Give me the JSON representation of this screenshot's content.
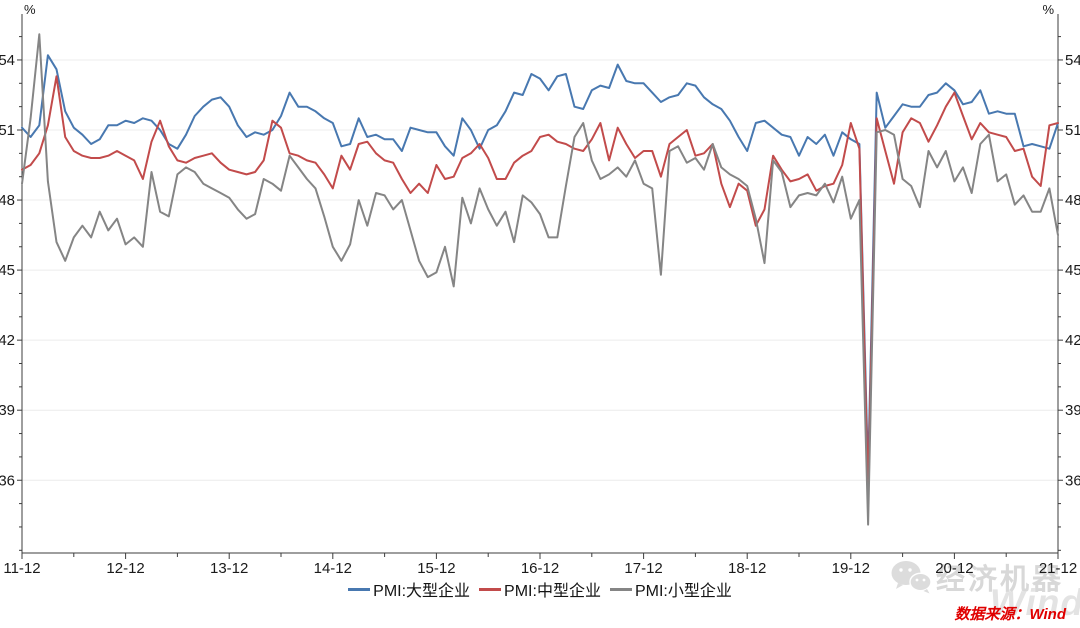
{
  "chart_data": {
    "type": "line",
    "title": "",
    "y_unit": "%",
    "x_start": "2011-12",
    "x_end": "2021-12",
    "x_tick_labels": [
      "11-12",
      "12-12",
      "13-12",
      "14-12",
      "15-12",
      "16-12",
      "17-12",
      "18-12",
      "19-12",
      "20-12",
      "21-12"
    ],
    "y_ticks": [
      36,
      39,
      42,
      45,
      48,
      51,
      54
    ],
    "y_minor_tick_range": [
      33,
      55
    ],
    "ylim": [
      32.9,
      56.0
    ],
    "grid": true,
    "legend_position": "bottom-center",
    "series": [
      {
        "name": "PMI:大型企业",
        "color": "#4878b0",
        "values": [
          51.1,
          50.7,
          51.2,
          54.2,
          53.6,
          51.8,
          51.1,
          50.8,
          50.4,
          50.6,
          51.2,
          51.2,
          51.4,
          51.3,
          51.5,
          51.4,
          51.0,
          50.4,
          50.2,
          50.8,
          51.6,
          52.0,
          52.3,
          52.4,
          52.0,
          51.2,
          50.7,
          50.9,
          50.8,
          51.0,
          51.6,
          52.6,
          52.0,
          52.0,
          51.8,
          51.5,
          51.3,
          50.3,
          50.4,
          51.5,
          50.7,
          50.8,
          50.6,
          50.6,
          50.1,
          51.1,
          51.0,
          50.9,
          50.9,
          50.3,
          49.9,
          51.5,
          51.0,
          50.2,
          51.0,
          51.2,
          51.8,
          52.6,
          52.5,
          53.4,
          53.2,
          52.7,
          53.3,
          53.4,
          52.0,
          51.9,
          52.7,
          52.9,
          52.8,
          53.8,
          53.1,
          53.0,
          53.0,
          52.6,
          52.2,
          52.4,
          52.5,
          53.0,
          52.9,
          52.4,
          52.1,
          51.9,
          51.4,
          50.7,
          50.1,
          51.3,
          51.4,
          51.1,
          50.8,
          50.7,
          49.9,
          50.7,
          50.4,
          50.8,
          49.9,
          50.9,
          50.6,
          50.4,
          36.3,
          52.6,
          51.1,
          51.6,
          52.1,
          52.0,
          52.0,
          52.5,
          52.6,
          53.0,
          52.7,
          52.1,
          52.2,
          52.7,
          51.7,
          51.8,
          51.7,
          51.7,
          50.3,
          50.4,
          50.3,
          50.2,
          51.3
        ]
      },
      {
        "name": "PMI:中型企业",
        "color": "#c24b4b",
        "values": [
          49.3,
          49.5,
          50.0,
          51.2,
          53.3,
          50.7,
          50.1,
          49.9,
          49.8,
          49.8,
          49.9,
          50.1,
          49.9,
          49.7,
          48.9,
          50.5,
          51.4,
          50.3,
          49.7,
          49.6,
          49.8,
          49.9,
          50.0,
          49.6,
          49.3,
          49.2,
          49.1,
          49.2,
          49.7,
          51.4,
          51.1,
          50.0,
          49.9,
          49.7,
          49.6,
          49.1,
          48.5,
          49.9,
          49.3,
          50.4,
          50.5,
          50.0,
          49.7,
          49.6,
          48.9,
          48.3,
          48.7,
          48.3,
          49.5,
          48.9,
          49.0,
          49.8,
          50.0,
          50.4,
          49.8,
          48.9,
          48.9,
          49.6,
          49.9,
          50.1,
          50.7,
          50.8,
          50.5,
          50.4,
          50.2,
          50.1,
          50.6,
          51.3,
          49.7,
          51.1,
          50.4,
          49.8,
          50.1,
          50.1,
          49.0,
          50.4,
          50.7,
          51.0,
          49.9,
          50.0,
          50.4,
          48.7,
          47.7,
          48.7,
          48.4,
          46.9,
          47.6,
          49.9,
          49.3,
          48.8,
          48.9,
          49.1,
          48.4,
          48.6,
          48.7,
          49.5,
          51.3,
          50.2,
          35.5,
          51.5,
          50.1,
          48.7,
          50.9,
          51.5,
          51.3,
          50.5,
          51.2,
          52.0,
          52.6,
          51.6,
          50.6,
          51.3,
          50.9,
          50.8,
          50.7,
          50.1,
          50.2,
          49.0,
          48.6,
          51.2,
          51.3
        ]
      },
      {
        "name": "PMI:小型企业",
        "color": "#858585",
        "values": [
          48.7,
          51.5,
          55.1,
          48.8,
          46.2,
          45.4,
          46.4,
          46.9,
          46.4,
          47.5,
          46.7,
          47.2,
          46.1,
          46.4,
          46.0,
          49.2,
          47.5,
          47.3,
          49.1,
          49.4,
          49.2,
          48.7,
          48.5,
          48.3,
          48.1,
          47.6,
          47.2,
          47.4,
          48.9,
          48.7,
          48.4,
          49.9,
          49.4,
          48.9,
          48.5,
          47.3,
          46.0,
          45.4,
          46.1,
          48.0,
          46.9,
          48.3,
          48.2,
          47.6,
          48.0,
          46.7,
          45.4,
          44.7,
          44.9,
          46.0,
          44.3,
          48.1,
          47.0,
          48.5,
          47.6,
          46.9,
          47.5,
          46.2,
          48.2,
          47.9,
          47.4,
          46.4,
          46.4,
          48.6,
          50.7,
          51.3,
          49.7,
          48.9,
          49.1,
          49.4,
          49.0,
          49.7,
          48.7,
          48.5,
          44.8,
          50.1,
          50.3,
          49.6,
          49.8,
          49.3,
          50.4,
          49.4,
          49.1,
          48.9,
          48.6,
          47.2,
          45.3,
          49.7,
          49.2,
          47.7,
          48.2,
          48.3,
          48.2,
          48.7,
          47.9,
          49.0,
          47.2,
          48.0,
          34.1,
          50.9,
          51.0,
          50.8,
          48.9,
          48.6,
          47.7,
          50.1,
          49.4,
          50.1,
          48.8,
          49.4,
          48.3,
          50.4,
          50.8,
          48.8,
          49.1,
          47.8,
          48.2,
          47.5,
          47.5,
          48.5,
          46.5
        ]
      }
    ]
  },
  "footer": {
    "source_label": "数据来源：Wind"
  },
  "watermark": {
    "brand": "经济机器",
    "wind": "Wind"
  },
  "colors": {
    "axis": "#3c3c3c",
    "grid": "#ececec",
    "tick_label": "#1a1a1a",
    "source_red": "#e00000",
    "watermark_gray": "#d8d8d8"
  }
}
